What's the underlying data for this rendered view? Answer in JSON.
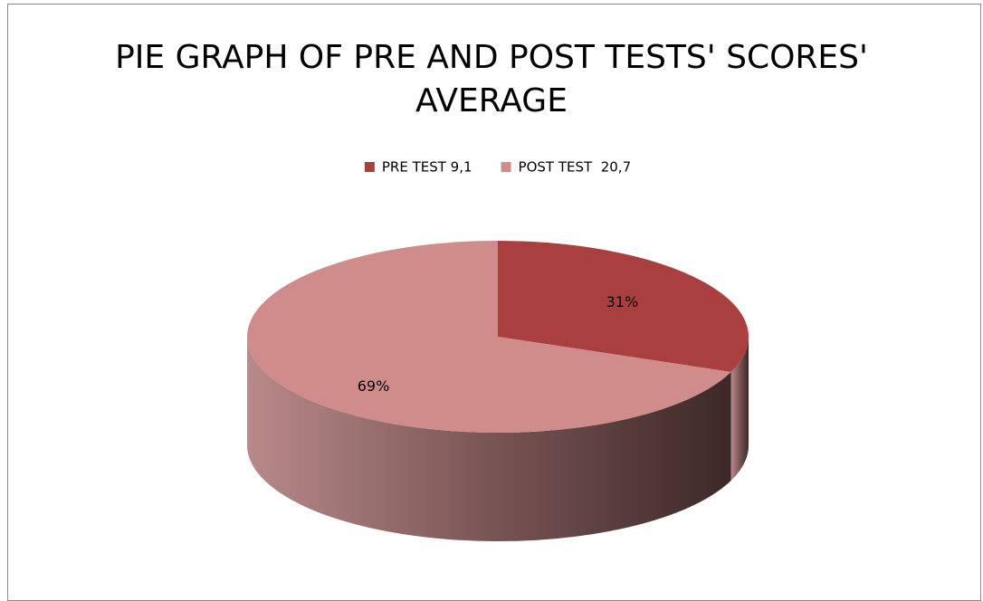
{
  "chart_data": {
    "type": "pie",
    "title": "PIE GRAPH OF PRE AND POST TESTS' SCORES' AVERAGE",
    "categories": [
      "PRE TEST 9,1",
      "POST TEST  20,7"
    ],
    "values": [
      31,
      69
    ],
    "value_labels": [
      "31%",
      "69%"
    ],
    "colors": [
      "#a9403f",
      "#d08c8b"
    ],
    "legend": "top"
  }
}
